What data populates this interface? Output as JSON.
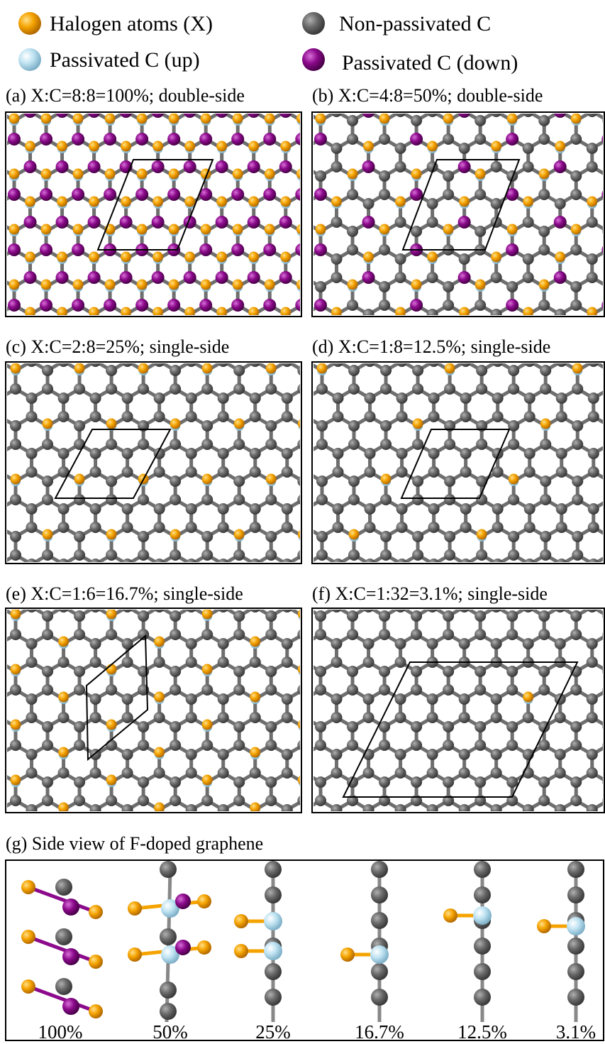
{
  "legend": {
    "items": [
      "Halogen atoms (X)",
      "Non-passivated C",
      "Passivated C (up)",
      "Passivated C (down)"
    ]
  },
  "panels": [
    "(a) X:C=8:8=100%; double-side",
    "(b) X:C=4:8=50%; double-side",
    "(c) X:C=2:8=25%; single-side",
    "(d) X:C=1:8=12.5%; single-side",
    "(e) X:C=1:6=16.7%; single-side",
    "(f) X:C=1:32=3.1%; single-side"
  ],
  "side_view": {
    "title": "(g) Side view of F-doped graphene",
    "labels": [
      "100%",
      "50%",
      "25%",
      "16.7%",
      "12.5%",
      "3.1%"
    ]
  }
}
